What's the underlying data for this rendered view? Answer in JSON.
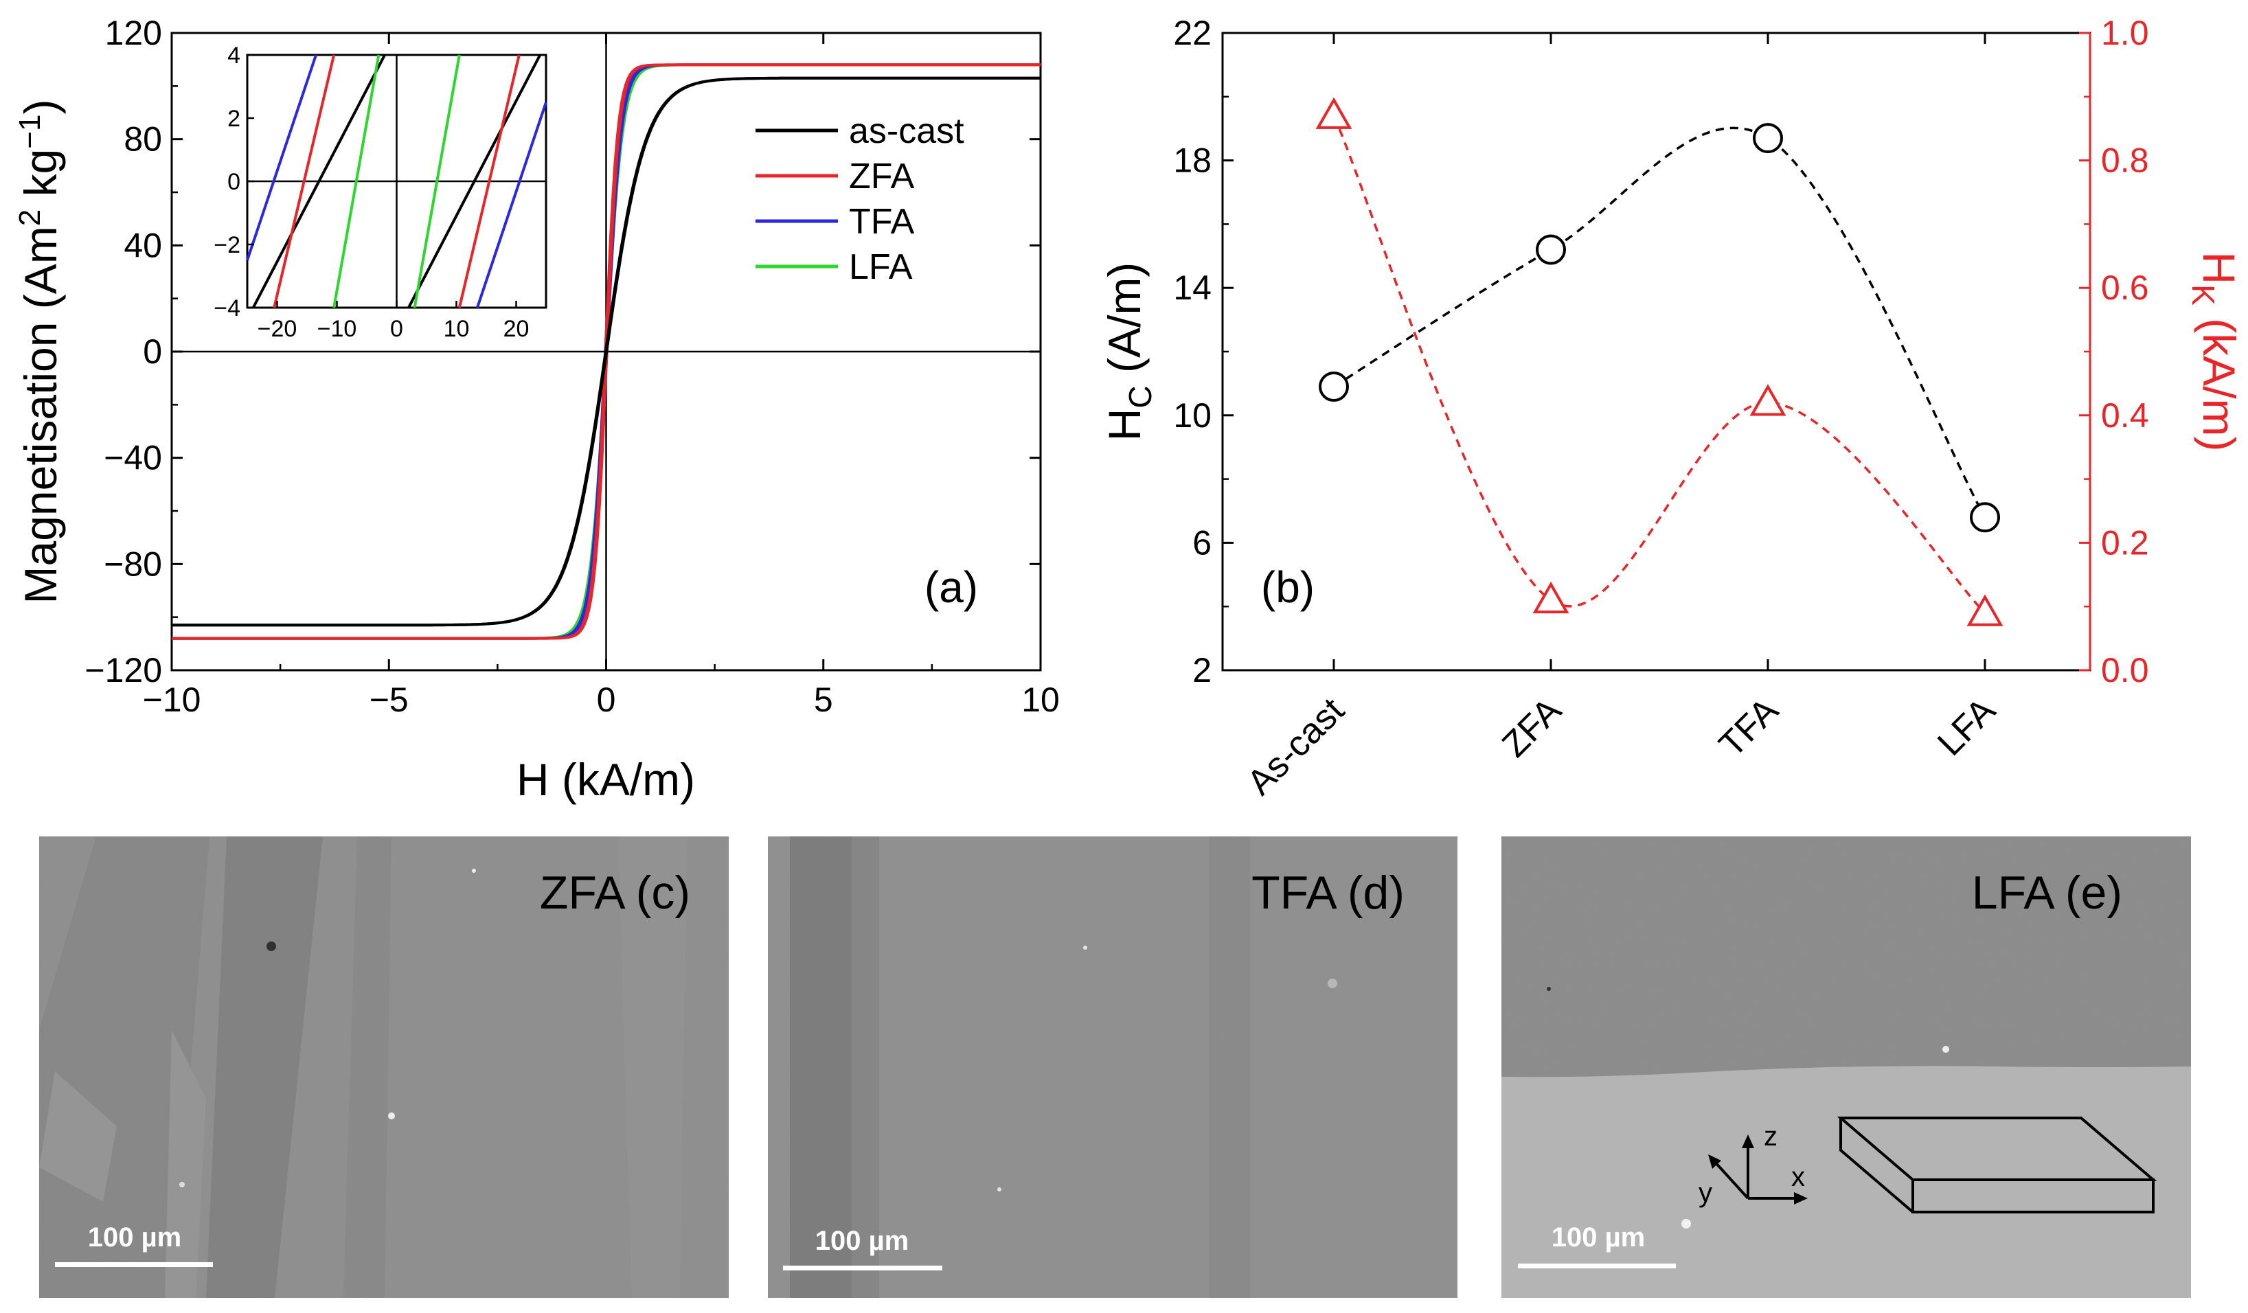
{
  "chart_data": [
    {
      "id": "a",
      "type": "line",
      "panel_label": "(a)",
      "xlabel": "H (kA/m)",
      "ylabel_main": "Magnetisation (Am",
      "ylabel_sup1": "2",
      "ylabel_mid": " kg",
      "ylabel_sup2": "−1",
      "ylabel_end": ")",
      "xlim": [
        -10,
        10
      ],
      "ylim": [
        -120,
        120
      ],
      "xticks": [
        -10,
        -5,
        0,
        5,
        10
      ],
      "xtick_labels": [
        "−10",
        "−5",
        "0",
        "5",
        "10"
      ],
      "yticks": [
        -120,
        -80,
        -40,
        0,
        40,
        80,
        120
      ],
      "ytick_labels": [
        "−120",
        "−80",
        "−40",
        "0",
        "40",
        "80",
        "120"
      ],
      "legend_position": "right",
      "series": [
        {
          "name": "as-cast",
          "color": "#000000",
          "ms": 103,
          "width": 0.9,
          "hc": 0.011
        },
        {
          "name": "ZFA",
          "color": "#e8262a",
          "ms": 108,
          "width": 0.28,
          "hc": 0.015
        },
        {
          "name": "TFA",
          "color": "#2a28e0",
          "ms": 108,
          "width": 0.33,
          "hc": 0.019
        },
        {
          "name": "LFA",
          "color": "#2ed62e",
          "ms": 108,
          "width": 0.37,
          "hc": 0.007
        }
      ],
      "inset": {
        "xlabel": "",
        "xlim": [
          -25,
          25
        ],
        "ylim": [
          -4,
          4
        ],
        "xticks": [
          -20,
          -10,
          0,
          10,
          20
        ],
        "xtick_labels": [
          "−20",
          "−10",
          "0",
          "10",
          "20"
        ],
        "yticks": [
          -4,
          -2,
          0,
          2,
          4
        ],
        "ytick_labels": [
          "−4",
          "−2",
          "0",
          "2",
          "4"
        ],
        "branches": [
          {
            "name": "as-cast",
            "color": "#000000",
            "points": [
              [
                -24,
                -4
              ],
              [
                -2,
                4
              ]
            ]
          },
          {
            "name": "as-cast",
            "color": "#000000",
            "points": [
              [
                2,
                -4
              ],
              [
                24,
                4
              ]
            ]
          },
          {
            "name": "ZFA",
            "color": "#e8262a",
            "points": [
              [
                -20.5,
                -4
              ],
              [
                -10.5,
                4
              ]
            ]
          },
          {
            "name": "ZFA",
            "color": "#e8262a",
            "points": [
              [
                10.5,
                -4
              ],
              [
                20.5,
                4
              ]
            ]
          },
          {
            "name": "TFA",
            "color": "#2a28e0",
            "points": [
              [
                -25,
                -2.5
              ],
              [
                -13.5,
                4
              ]
            ]
          },
          {
            "name": "TFA",
            "color": "#2a28e0",
            "points": [
              [
                13.5,
                -4
              ],
              [
                25,
                2.5
              ]
            ]
          },
          {
            "name": "LFA",
            "color": "#2ed62e",
            "points": [
              [
                -10.5,
                -4
              ],
              [
                -3,
                4
              ]
            ]
          },
          {
            "name": "LFA",
            "color": "#2ed62e",
            "points": [
              [
                3,
                -4
              ],
              [
                10.5,
                4
              ]
            ]
          }
        ]
      }
    },
    {
      "id": "b",
      "type": "scatter",
      "panel_label": "(b)",
      "categories": [
        "As-cast",
        "ZFA",
        "TFA",
        "LFA"
      ],
      "ylabel_left": "H",
      "ylabel_left_sub": "C",
      "ylabel_left_unit": " (A/m)",
      "ylabel_right": "H",
      "ylabel_right_sub": "K",
      "ylabel_right_unit": " (kA/m)",
      "ylim_left": [
        2,
        22
      ],
      "yticks_left": [
        2,
        6,
        10,
        14,
        18,
        22
      ],
      "ylim_right": [
        0,
        1
      ],
      "yticks_right": [
        0.0,
        0.2,
        0.4,
        0.6,
        0.8,
        1.0
      ],
      "ytick_labels_right": [
        "0.0",
        "0.2",
        "0.4",
        "0.6",
        "0.8",
        "1.0"
      ],
      "series": [
        {
          "name": "Hc",
          "axis": "left",
          "marker": "circle",
          "color": "#000000",
          "values": [
            10.9,
            15.2,
            18.7,
            6.8
          ]
        },
        {
          "name": "Hk",
          "axis": "right",
          "marker": "triangle",
          "color": "#e8262a",
          "values": [
            0.87,
            0.11,
            0.42,
            0.09
          ]
        }
      ]
    }
  ],
  "micrographs": [
    {
      "label": "ZFA (c)",
      "scale_bar": "100 µm"
    },
    {
      "label": "TFA (d)",
      "scale_bar": "100 µm"
    },
    {
      "label": "LFA (e)",
      "scale_bar": "100 µm",
      "axes": {
        "z": "z",
        "x": "x",
        "y": "y"
      }
    }
  ]
}
